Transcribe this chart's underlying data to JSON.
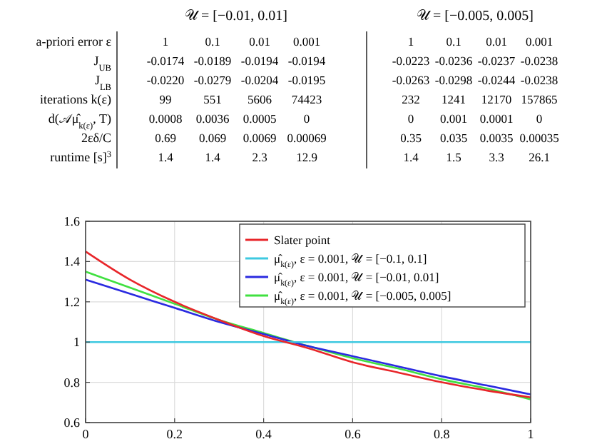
{
  "chart_data": [
    {
      "type": "heatmap",
      "title": "𝒰 = [−0.01, 0.01]",
      "xlabel": "a-priori error ε",
      "categories": [
        "1",
        "0.1",
        "0.01",
        "0.001"
      ],
      "y_categories": [
        "J$_{UB}$",
        "J$_{LB}$",
        "iterations k(ε)",
        "d(𝒜μ̂$_{k(ε)}$, T)",
        "2εδ/C",
        "runtime [s]$^{3}$"
      ],
      "cells": [
        [
          -0.0174,
          -0.0189,
          -0.0194,
          -0.0194
        ],
        [
          -0.022,
          -0.0279,
          -0.0204,
          -0.0195
        ],
        [
          99,
          551,
          5606,
          74423
        ],
        [
          0.0008,
          0.0036,
          0.0005,
          0
        ],
        [
          0.69,
          0.069,
          0.0069,
          0.00069
        ],
        [
          1.4,
          1.4,
          2.3,
          12.9
        ]
      ],
      "data_labels": true,
      "cell_labels": [
        [
          "-0.0174",
          "-0.0189",
          "-0.0194",
          "-0.0194"
        ],
        [
          "-0.0220",
          "-0.0279",
          "-0.0204",
          "-0.0195"
        ],
        [
          "99",
          "551",
          "5606",
          "74423"
        ],
        [
          "0.0008",
          "0.0036",
          "0.0005",
          "0"
        ],
        [
          "0.69",
          "0.069",
          "0.0069",
          "0.00069"
        ],
        [
          "1.4",
          "1.4",
          "2.3",
          "12.9"
        ]
      ]
    },
    {
      "type": "heatmap",
      "title": "𝒰 = [−0.005, 0.005]",
      "categories": [
        "1",
        "0.1",
        "0.01",
        "0.001"
      ],
      "y_categories": [
        null,
        null,
        null,
        null,
        null,
        null
      ],
      "tick_labels": "x",
      "data_labels": true,
      "cells": [
        [
          -0.0223,
          -0.0236,
          -0.0237,
          -0.0238
        ],
        [
          -0.0263,
          -0.0298,
          -0.0244,
          -0.0238
        ],
        [
          232,
          1241,
          12170,
          157865
        ],
        [
          0,
          0.001,
          0.0001,
          0
        ],
        [
          0.35,
          0.035,
          0.0035,
          0.00035
        ],
        [
          1.4,
          1.5,
          3.3,
          26.1
        ]
      ]
    },
    {
      "type": "line",
      "xlim": [
        0,
        1
      ],
      "xticks": [
        0,
        0.2,
        0.4,
        0.6,
        0.8,
        1
      ],
      "ylim": [
        0.6,
        1.6
      ],
      "yticks": [
        0.6,
        0.8,
        1,
        1.2,
        1.4,
        1.6
      ],
      "grid": true,
      "legend": "top right",
      "series": [
        {
          "name": "Slater point",
          "color": "#e8262a",
          "x": [
            0,
            0.1,
            0.2,
            0.3,
            0.4,
            0.5,
            0.6,
            0.7,
            0.8,
            0.9,
            1
          ],
          "values": [
            1.45,
            1.31,
            1.2,
            1.11,
            1.03,
            0.97,
            0.9,
            0.85,
            0.8,
            0.76,
            0.725
          ]
        },
        {
          "name": "μ̂$_{k(ε)}$, ε = 0.001, 𝒰 = [−0.1, 0.1]",
          "color": "#3ec9e0",
          "x": [
            0,
            1
          ],
          "values": [
            1,
            1
          ]
        },
        {
          "name": "μ̂$_{k(ε)}$, ε = 0.001, 𝒰 = [−0.01, 0.01]",
          "color": "#2a2ae0",
          "x": [
            0,
            0.1,
            0.2,
            0.3,
            0.4,
            0.5,
            0.6,
            0.7,
            0.8,
            0.9,
            1
          ],
          "values": [
            1.31,
            1.24,
            1.17,
            1.1,
            1.04,
            0.98,
            0.93,
            0.88,
            0.83,
            0.785,
            0.74
          ]
        },
        {
          "name": "μ̂$_{k(ε)}$, ε = 0.001, 𝒰 = [−0.005, 0.005]",
          "color": "#40e040",
          "x": [
            0,
            0.1,
            0.2,
            0.3,
            0.4,
            0.5,
            0.6,
            0.7,
            0.8,
            0.9,
            1
          ],
          "values": [
            1.35,
            1.27,
            1.19,
            1.11,
            1.045,
            0.98,
            0.92,
            0.87,
            0.815,
            0.77,
            0.715
          ]
        }
      ]
    }
  ]
}
